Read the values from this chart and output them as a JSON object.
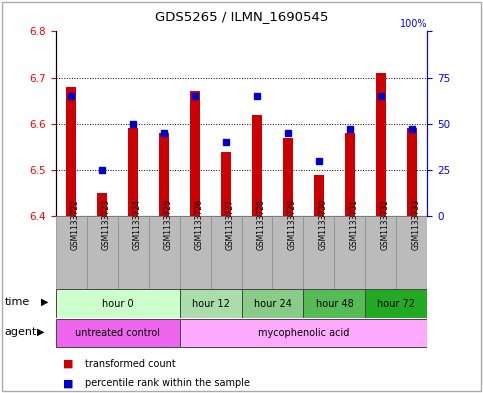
{
  "title": "GDS5265 / ILMN_1690545",
  "samples": [
    "GSM1133722",
    "GSM1133723",
    "GSM1133724",
    "GSM1133725",
    "GSM1133726",
    "GSM1133727",
    "GSM1133728",
    "GSM1133729",
    "GSM1133730",
    "GSM1133731",
    "GSM1133732",
    "GSM1133733"
  ],
  "transformed_count": [
    6.68,
    6.45,
    6.59,
    6.58,
    6.67,
    6.54,
    6.62,
    6.57,
    6.49,
    6.58,
    6.71,
    6.59
  ],
  "percentile_rank": [
    65,
    25,
    50,
    45,
    65,
    40,
    65,
    45,
    30,
    47,
    65,
    47
  ],
  "ylim_left": [
    6.4,
    6.8
  ],
  "ylim_right": [
    0,
    100
  ],
  "yticks_left": [
    6.4,
    6.5,
    6.6,
    6.7,
    6.8
  ],
  "yticks_right": [
    0,
    25,
    50,
    75,
    100
  ],
  "bar_color": "#cc0000",
  "dot_color": "#0000cc",
  "bar_bottom": 6.4,
  "time_groups": [
    {
      "label": "hour 0",
      "start": 0,
      "end": 4,
      "color": "#ccffcc"
    },
    {
      "label": "hour 12",
      "start": 4,
      "end": 6,
      "color": "#aaddaa"
    },
    {
      "label": "hour 24",
      "start": 6,
      "end": 8,
      "color": "#88cc88"
    },
    {
      "label": "hour 48",
      "start": 8,
      "end": 10,
      "color": "#55bb55"
    },
    {
      "label": "hour 72",
      "start": 10,
      "end": 12,
      "color": "#22aa22"
    }
  ],
  "agent_groups": [
    {
      "label": "untreated control",
      "start": 0,
      "end": 4,
      "color": "#ee66ee"
    },
    {
      "label": "mycophenolic acid",
      "start": 4,
      "end": 12,
      "color": "#ffaaff"
    }
  ],
  "legend_bar_label": "transformed count",
  "legend_dot_label": "percentile rank within the sample",
  "time_label": "time",
  "agent_label": "agent",
  "background_color": "#ffffff",
  "sample_bg_color": "#bbbbbb",
  "bar_width": 0.35
}
